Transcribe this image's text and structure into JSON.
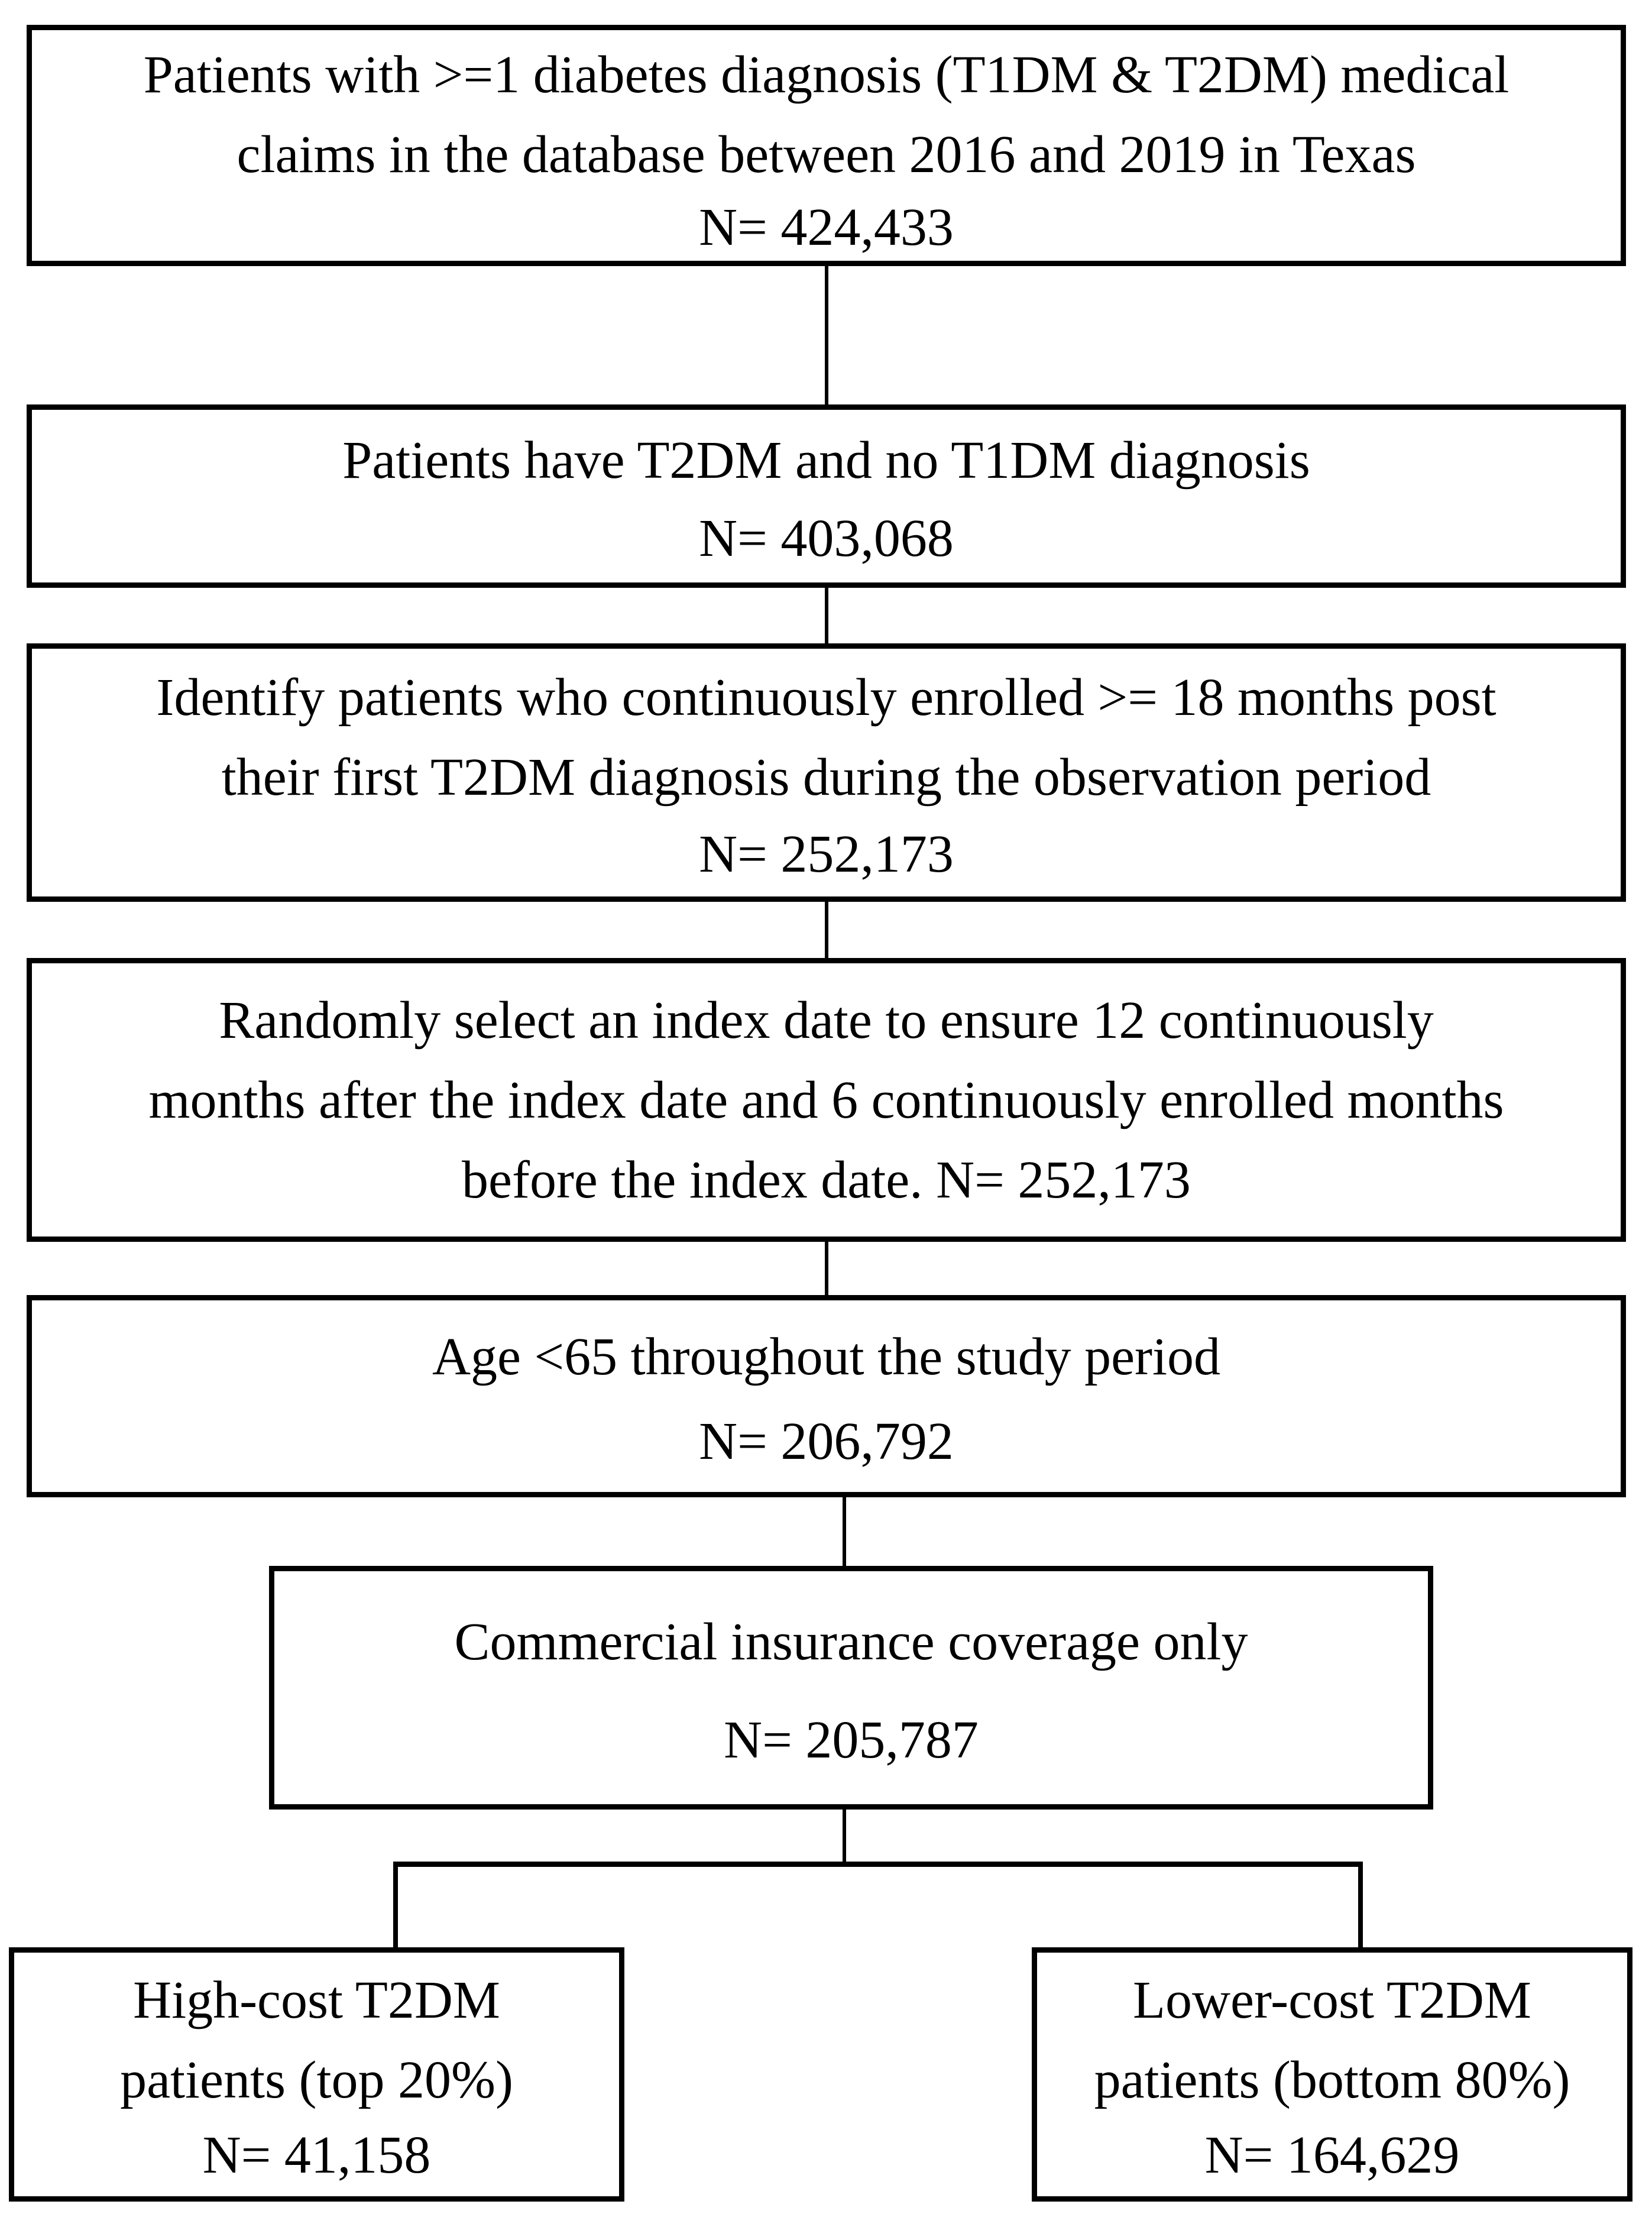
{
  "page": {
    "background": "#ffffff",
    "line_color": "#000000"
  },
  "flowchart": {
    "boxes": [
      {
        "id": "diabetes-claims",
        "text": "Patients with >=1 diabetes diagnosis (T1DM & T2DM) medical\nclaims in the database between 2016 and 2019 in Texas",
        "n": "N= 424,433"
      },
      {
        "id": "t2dm-no-t1dm",
        "text": "Patients have T2DM and no T1DM diagnosis",
        "n": "N= 403,068"
      },
      {
        "id": "continuous-enrollment",
        "text": "Identify patients who continuously enrolled >= 18 months post\ntheir first T2DM diagnosis during the observation period",
        "n": "N= 252,173"
      },
      {
        "id": "index-date-selection",
        "text": "Randomly select an index date to ensure 12 continuously\nmonths after the index date and 6 continuously enrolled months\nbefore the index date. N= 252,173"
      },
      {
        "id": "age-under-65",
        "text": "Age <65 throughout the study period",
        "n": "N= 206,792"
      },
      {
        "id": "commercial-insurance",
        "text": "Commercial insurance coverage only",
        "n": "N= 205,787"
      },
      {
        "id": "high-cost-t2dm",
        "text": "High-cost T2DM\npatients (top 20%)",
        "n": "N= 41,158"
      },
      {
        "id": "lower-cost-t2dm",
        "text": "Lower-cost T2DM\npatients (bottom 80%)",
        "n": "N= 164,629"
      }
    ]
  }
}
